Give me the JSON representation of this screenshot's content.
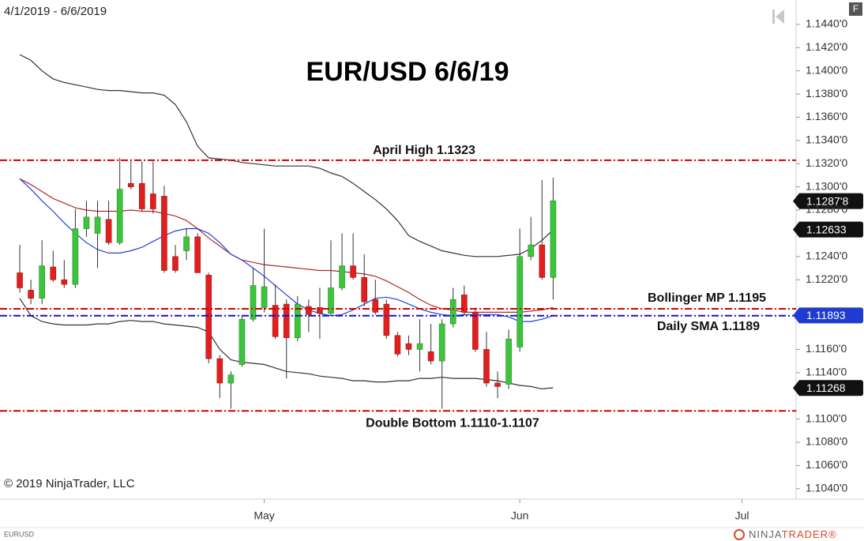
{
  "chart_data": {
    "type": "candlestick",
    "title": "EUR/USD 6/6/19",
    "date_range": "4/1/2019 - 6/6/2019",
    "copyright": "© 2019 NinjaTrader, LLC",
    "symbol": "EURUSD",
    "brand": [
      "NINJA",
      "TRADER®"
    ],
    "button": "F",
    "up_color": "#3cc43c",
    "down_color": "#e21f1f",
    "categories": [
      null,
      null,
      null,
      null,
      null,
      null,
      null,
      null,
      null,
      null,
      null,
      null,
      null,
      null,
      null,
      null,
      null,
      null,
      null,
      null,
      null,
      null,
      "May",
      null,
      null,
      null,
      null,
      null,
      null,
      null,
      null,
      null,
      null,
      null,
      null,
      null,
      null,
      null,
      null,
      null,
      null,
      null,
      null,
      null,
      null,
      "Jun",
      null,
      null,
      null,
      null,
      null,
      null,
      null,
      null,
      null,
      null,
      null,
      null,
      null,
      null,
      null,
      null,
      null,
      null,
      null,
      "Jul"
    ],
    "open": [
      1.1226,
      1.1211,
      1.1204,
      1.1231,
      1.122,
      1.1216,
      1.1264,
      1.126,
      1.1272,
      1.1252,
      1.1303,
      1.1303,
      1.1294,
      1.1292,
      1.124,
      1.1245,
      1.1257,
      1.1224,
      1.1152,
      1.1131,
      1.1147,
      1.1186,
      1.1196,
      1.1198,
      1.1199,
      1.117,
      1.1197,
      1.1196,
      1.1191,
      1.1213,
      1.1232,
      1.1222,
      1.1203,
      1.1199,
      1.1172,
      1.1165,
      1.116,
      1.1158,
      1.115,
      1.1182,
      1.1207,
      1.1192,
      1.116,
      1.1131,
      1.113,
      1.1162,
      1.124,
      1.125,
      1.1222,
      null,
      null,
      null,
      null,
      null,
      null,
      null,
      null,
      null,
      null,
      null,
      null,
      null,
      null,
      null,
      null,
      null
    ],
    "high": [
      1.125,
      1.122,
      1.1254,
      1.1245,
      1.1237,
      1.1281,
      1.1288,
      1.1288,
      1.1288,
      1.1325,
      1.1322,
      1.1322,
      1.1322,
      1.1301,
      1.125,
      1.1264,
      1.126,
      1.1226,
      1.1155,
      1.1141,
      1.1189,
      1.123,
      1.1264,
      1.1216,
      1.1203,
      1.1206,
      1.1203,
      1.1213,
      1.1254,
      1.126,
      1.126,
      1.1242,
      1.122,
      1.1203,
      1.1175,
      1.1172,
      1.1186,
      1.1182,
      1.1186,
      1.1213,
      1.1215,
      1.1196,
      1.1175,
      1.1141,
      1.1177,
      1.1264,
      1.1274,
      1.1306,
      1.1308,
      null,
      null,
      null,
      null,
      null,
      null,
      null,
      null,
      null,
      null,
      null,
      null,
      null,
      null,
      null,
      null,
      null
    ],
    "low": [
      1.1209,
      1.1199,
      1.1199,
      1.1218,
      1.1213,
      1.1213,
      1.1257,
      1.123,
      1.125,
      1.125,
      1.1298,
      1.1279,
      1.1277,
      1.1226,
      1.1226,
      1.1237,
      1.1226,
      1.1148,
      1.1118,
      1.1109,
      1.1145,
      1.1184,
      1.1192,
      1.1169,
      1.1135,
      1.1167,
      1.1175,
      1.1169,
      1.1189,
      1.1211,
      1.122,
      1.1197,
      1.119,
      1.1169,
      1.1154,
      1.1155,
      1.1141,
      1.1147,
      1.1109,
      1.1179,
      1.1189,
      1.1158,
      1.1128,
      1.1118,
      1.1126,
      1.1158,
      1.1237,
      1.122,
      1.1203,
      null,
      null,
      null,
      null,
      null,
      null,
      null,
      null,
      null,
      null,
      null,
      null,
      null,
      null,
      null,
      null,
      null
    ],
    "close": [
      1.1213,
      1.1204,
      1.1232,
      1.122,
      1.1216,
      1.1264,
      1.1274,
      1.1274,
      1.1252,
      1.1298,
      1.13,
      1.1281,
      1.1281,
      1.1228,
      1.1228,
      1.1257,
      1.1226,
      1.1152,
      1.1131,
      1.1138,
      1.1186,
      1.1215,
      1.1214,
      1.1171,
      1.117,
      1.1199,
      1.119,
      1.1191,
      1.1213,
      1.1232,
      1.1222,
      1.1201,
      1.1192,
      1.1172,
      1.1156,
      1.116,
      1.1165,
      1.115,
      1.1182,
      1.1203,
      1.1192,
      1.116,
      1.1131,
      1.1128,
      1.1169,
      1.124,
      1.125,
      1.1222,
      1.1288,
      null,
      null,
      null,
      null,
      null,
      null,
      null,
      null,
      null,
      null,
      null,
      null,
      null,
      null,
      null,
      null,
      null
    ],
    "series": [
      {
        "color": "#333333",
        "values": [
          1.1414,
          1.1409,
          1.14,
          1.1393,
          1.139,
          1.1388,
          1.1386,
          1.1384,
          1.1383,
          1.1383,
          1.1382,
          1.1381,
          1.1381,
          1.1379,
          1.1371,
          1.1356,
          1.1335,
          1.1325,
          1.1324,
          1.1323,
          1.1321,
          1.132,
          1.1319,
          1.1318,
          1.1318,
          1.1318,
          1.1318,
          1.1316,
          1.1312,
          1.1309,
          1.1303,
          1.1296,
          1.1289,
          1.1281,
          1.1271,
          1.1258,
          1.1253,
          1.1249,
          1.1245,
          1.1243,
          1.1241,
          1.124,
          1.124,
          1.124,
          1.1241,
          1.1242,
          1.1247,
          1.1254,
          1.1263,
          null,
          null,
          null,
          null,
          null,
          null,
          null,
          null,
          null,
          null,
          null,
          null,
          null,
          null,
          null,
          null,
          null
        ]
      },
      {
        "color": "#333333",
        "values": [
          1.1204,
          1.1189,
          1.1184,
          1.1182,
          1.1181,
          1.1181,
          1.1181,
          1.1182,
          1.1182,
          1.1184,
          1.1185,
          1.1184,
          1.1184,
          1.1182,
          1.1181,
          1.118,
          1.1179,
          1.1175,
          1.116,
          1.1151,
          1.1149,
          1.1148,
          1.1147,
          1.1144,
          1.1141,
          1.114,
          1.1139,
          1.1137,
          1.1136,
          1.1135,
          1.1133,
          1.1133,
          1.1132,
          1.1132,
          1.1133,
          1.1133,
          1.1135,
          1.1135,
          1.1136,
          1.1135,
          1.1135,
          1.1135,
          1.1134,
          1.1133,
          1.1131,
          1.1129,
          1.1128,
          1.1126,
          1.1127,
          null,
          null,
          null,
          null,
          null,
          null,
          null,
          null,
          null,
          null,
          null,
          null,
          null,
          null,
          null,
          null,
          null
        ]
      },
      {
        "color": "#b02a2a",
        "values": [
          1.1307,
          1.1302,
          1.1296,
          1.129,
          1.1286,
          1.1282,
          1.128,
          1.1279,
          1.1279,
          1.1279,
          1.128,
          1.1279,
          1.1279,
          1.1277,
          1.1275,
          1.1271,
          1.1264,
          1.1256,
          1.1249,
          1.1242,
          1.1237,
          1.1235,
          1.1233,
          1.1232,
          1.1231,
          1.123,
          1.1229,
          1.1228,
          1.1228,
          1.1227,
          1.1226,
          1.1225,
          1.1223,
          1.1219,
          1.1214,
          1.1209,
          1.1203,
          1.1198,
          1.1195,
          1.1194,
          1.1192,
          1.1192,
          1.1192,
          1.1192,
          1.1192,
          1.1192,
          1.1193,
          1.1194,
          1.1196,
          null,
          null,
          null,
          null,
          null,
          null,
          null,
          null,
          null,
          null,
          null,
          null,
          null,
          null,
          null,
          null,
          null
        ]
      },
      {
        "color": "#2040d8",
        "values": [
          1.1307,
          1.1298,
          1.1288,
          1.1279,
          1.1269,
          1.126,
          1.1252,
          1.1246,
          1.1243,
          1.1243,
          1.1245,
          1.1248,
          1.1253,
          1.1258,
          1.1262,
          1.1264,
          1.1264,
          1.126,
          1.1252,
          1.1242,
          1.1237,
          1.123,
          1.1223,
          1.1215,
          1.1207,
          1.1199,
          1.1194,
          1.1191,
          1.1189,
          1.119,
          1.1194,
          1.1199,
          1.1204,
          1.1205,
          1.1203,
          1.1199,
          1.1195,
          1.1192,
          1.119,
          1.1189,
          1.119,
          1.119,
          1.119,
          1.119,
          1.1188,
          1.1184,
          1.1184,
          1.1186,
          1.1189,
          null,
          null,
          null,
          null,
          null,
          null,
          null,
          null,
          null,
          null,
          null,
          null,
          null,
          null,
          null,
          null,
          null
        ]
      }
    ],
    "levels": [
      {
        "label": "April High 1.1323",
        "value": 1.1323,
        "color": "#d40000"
      },
      {
        "label": "Bollinger MP 1.1195",
        "value": 1.1195,
        "color": "#d40000"
      },
      {
        "label": "Daily SMA 1.1189",
        "value": 1.1189,
        "color": "#1414c8"
      },
      {
        "label": "Double Bottom 1.1110-1.1107",
        "value": 1.1107,
        "color": "#d40000"
      }
    ],
    "price_flags": [
      {
        "value": 1.12878,
        "label": "1.1287'8",
        "color": "#111111"
      },
      {
        "value": 1.12633,
        "color": "#111111"
      },
      {
        "value": 1.11893,
        "color": "#1f3bd0"
      },
      {
        "value": 1.11268,
        "color": "#111111"
      }
    ],
    "ylim": [
      1.1031,
      1.1461
    ],
    "yticks": [
      {
        "value": 1.144,
        "label": "1.1440'0"
      },
      {
        "value": 1.142,
        "label": "1.1420'0"
      },
      {
        "value": 1.14,
        "label": "1.1400'0"
      },
      {
        "value": 1.138,
        "label": "1.1380'0"
      },
      {
        "value": 1.136,
        "label": "1.1360'0"
      },
      {
        "value": 1.134,
        "label": "1.1340'0"
      },
      {
        "value": 1.132,
        "label": "1.1320'0"
      },
      {
        "value": 1.13,
        "label": "1.1300'0"
      },
      {
        "value": 1.128,
        "label": "1.1280'0"
      },
      {
        "value": 1.124,
        "label": "1.1240'0"
      },
      {
        "value": 1.122,
        "label": "1.1220'0"
      },
      {
        "value": 1.116,
        "label": "1.1160'0"
      },
      {
        "value": 1.114,
        "label": "1.1140'0"
      },
      {
        "value": 1.11,
        "label": "1.1100'0"
      },
      {
        "value": 1.108,
        "label": "1.1080'0"
      },
      {
        "value": 1.106,
        "label": "1.1060'0"
      },
      {
        "value": 1.104,
        "label": "1.1040'0"
      }
    ]
  }
}
